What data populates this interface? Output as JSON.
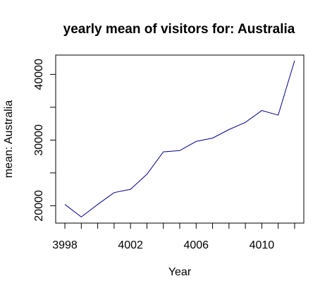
{
  "chart_data": {
    "type": "line",
    "title": "yearly mean of visitors for: Australia",
    "xlabel": "Year",
    "ylabel": "mean: Australia",
    "x": [
      3998,
      3999,
      4000,
      4001,
      4002,
      4003,
      4004,
      4005,
      4006,
      4007,
      4008,
      4009,
      4010,
      4011,
      4012
    ],
    "series": [
      {
        "values": [
          20200,
          18300,
          20200,
          22000,
          22500,
          24800,
          28200,
          28400,
          29800,
          30300,
          31600,
          32700,
          34500,
          33800,
          42100
        ]
      }
    ],
    "x_ticks": [
      3998,
      3999,
      4000,
      4001,
      4002,
      4003,
      4004,
      4005,
      4006,
      4007,
      4008,
      4009,
      4010,
      4011,
      4012
    ],
    "x_tick_labels": [
      "3998",
      "4002",
      "4006",
      "4010"
    ],
    "y_ticks": [
      20000,
      25000,
      30000,
      35000,
      40000
    ],
    "y_tick_labels": [
      "20000",
      "30000",
      "40000"
    ],
    "xlim": [
      3997.44,
      4012.56
    ],
    "ylim": [
      17356,
      42944
    ],
    "line_color": "#00008b",
    "grid": false
  }
}
